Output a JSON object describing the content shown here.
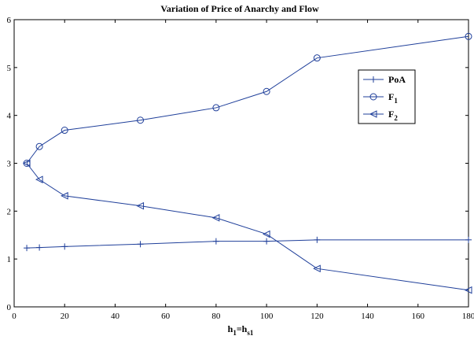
{
  "chart_data": {
    "type": "line",
    "title": "Variation of Price of Anarchy and Flow",
    "xlabel": {
      "main": "h",
      "sub1": "1",
      "eq": "=h",
      "sub2": "s1"
    },
    "ylabel": "",
    "xlim": [
      0,
      180
    ],
    "ylim": [
      0,
      6
    ],
    "xticks": [
      0,
      20,
      40,
      60,
      80,
      100,
      120,
      140,
      160,
      180
    ],
    "yticks": [
      0,
      1,
      2,
      3,
      4,
      5,
      6
    ],
    "grid": false,
    "legend_position": "top-right",
    "color": "#1f3f9a",
    "series": [
      {
        "name": "PoA",
        "marker": "plus",
        "legend": {
          "main": "PoA",
          "sub": ""
        },
        "points": [
          [
            5,
            1.23
          ],
          [
            10,
            1.24
          ],
          [
            20,
            1.26
          ],
          [
            50,
            1.31
          ],
          [
            80,
            1.37
          ],
          [
            100,
            1.37
          ],
          [
            120,
            1.4
          ],
          [
            180,
            1.4
          ]
        ]
      },
      {
        "name": "F1",
        "marker": "circle",
        "legend": {
          "main": "F",
          "sub": "1"
        },
        "points": [
          [
            5,
            3.0
          ],
          [
            10,
            3.35
          ],
          [
            20,
            3.69
          ],
          [
            50,
            3.9
          ],
          [
            80,
            4.16
          ],
          [
            100,
            4.5
          ],
          [
            120,
            5.2
          ],
          [
            180,
            5.65
          ]
        ]
      },
      {
        "name": "F2",
        "marker": "triangle-left",
        "legend": {
          "main": "F",
          "sub": "2"
        },
        "points": [
          [
            5,
            3.0
          ],
          [
            10,
            2.66
          ],
          [
            20,
            2.32
          ],
          [
            50,
            2.11
          ],
          [
            80,
            1.86
          ],
          [
            100,
            1.52
          ],
          [
            120,
            0.8
          ],
          [
            180,
            0.35
          ]
        ]
      }
    ]
  }
}
